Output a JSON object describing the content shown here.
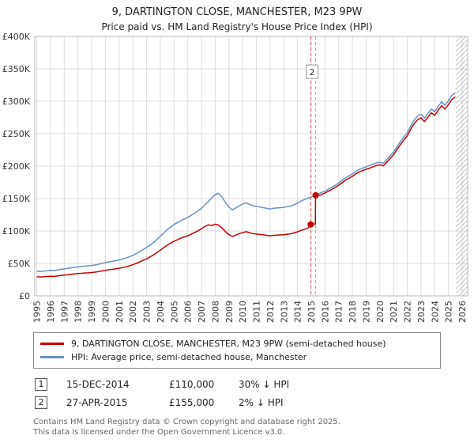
{
  "page": {
    "title": "9, DARTINGTON CLOSE, MANCHESTER, M23 9PW",
    "subtitle": "Price paid vs. HM Land Registry's House Price Index (HPI)",
    "footer_line1": "Contains HM Land Registry data © Crown copyright and database right 2025.",
    "footer_line2": "This data is licensed under the Open Government Licence v3.0."
  },
  "legend": {
    "items": [
      {
        "label": "9, DARTINGTON CLOSE, MANCHESTER, M23 9PW (semi-detached house)",
        "color": "#c40000"
      },
      {
        "label": "HPI: Average price, semi-detached house, Manchester",
        "color": "#6691c2"
      }
    ]
  },
  "transactions": [
    {
      "num": "1",
      "date": "15-DEC-2014",
      "price": "£110,000",
      "vs_hpi": "30% ↓ HPI"
    },
    {
      "num": "2",
      "date": "27-APR-2015",
      "price": "£155,000",
      "vs_hpi": "2% ↓ HPI"
    }
  ],
  "chart_data": {
    "type": "line",
    "title": "9, DARTINGTON CLOSE, MANCHESTER, M23 9PW",
    "subtitle": "Price paid vs. HM Land Registry's House Price Index (HPI)",
    "xlabel": "",
    "ylabel": "",
    "grid": true,
    "legend_position": "bottom",
    "xlim": [
      1994.85,
      2026.4
    ],
    "ylim": [
      0,
      400000
    ],
    "y_value_scale": 1000,
    "x_ticks": [
      1995,
      1996,
      1997,
      1998,
      1999,
      2000,
      2001,
      2002,
      2003,
      2004,
      2005,
      2006,
      2007,
      2008,
      2009,
      2010,
      2011,
      2012,
      2013,
      2014,
      2015,
      2016,
      2017,
      2018,
      2019,
      2020,
      2021,
      2022,
      2023,
      2024,
      2025,
      2026
    ],
    "y_ticks": [
      {
        "value": 0,
        "label": "£0"
      },
      {
        "value": 50000,
        "label": "£50K"
      },
      {
        "value": 100000,
        "label": "£100K"
      },
      {
        "value": 150000,
        "label": "£150K"
      },
      {
        "value": 200000,
        "label": "£200K"
      },
      {
        "value": 250000,
        "label": "£250K"
      },
      {
        "value": 300000,
        "label": "£300K"
      },
      {
        "value": 350000,
        "label": "£350K"
      },
      {
        "value": 400000,
        "label": "£400K"
      }
    ],
    "future_region_start": 2025.55,
    "sale_dot_color": "#c40000",
    "marker_line_colors": [
      "#d95555",
      "#ef8bb0"
    ],
    "sale_markers": [
      {
        "x": 2014.96,
        "y": 110000,
        "label": "1"
      },
      {
        "x": 2015.32,
        "y": 155000,
        "label": "2"
      }
    ],
    "annotation": {
      "x": 2015.32,
      "y": 345000,
      "label": "2"
    },
    "series": [
      {
        "id": "hpi-line",
        "name": "HPI: Average price, semi-detached house, Manchester",
        "color": "#6691c2",
        "points": [
          [
            1995,
            38
          ],
          [
            1995.25,
            37.5
          ],
          [
            1995.5,
            38.2
          ],
          [
            1995.75,
            38.8
          ],
          [
            1996,
            39.2
          ],
          [
            1996.25,
            39
          ],
          [
            1996.5,
            40
          ],
          [
            1996.75,
            40.8
          ],
          [
            1997,
            41.5
          ],
          [
            1997.25,
            42.3
          ],
          [
            1997.5,
            43.2
          ],
          [
            1997.75,
            44
          ],
          [
            1998,
            44.6
          ],
          [
            1998.25,
            45.2
          ],
          [
            1998.5,
            45.8
          ],
          [
            1998.75,
            46.2
          ],
          [
            1999,
            46.8
          ],
          [
            1999.25,
            47.6
          ],
          [
            1999.5,
            48.8
          ],
          [
            1999.75,
            50
          ],
          [
            2000,
            51.2
          ],
          [
            2000.25,
            52.3
          ],
          [
            2000.5,
            53.2
          ],
          [
            2000.75,
            54.2
          ],
          [
            2001,
            55.3
          ],
          [
            2001.25,
            56.8
          ],
          [
            2001.5,
            58.3
          ],
          [
            2001.75,
            60.2
          ],
          [
            2002,
            62.5
          ],
          [
            2002.25,
            65.2
          ],
          [
            2002.5,
            68.2
          ],
          [
            2002.75,
            71.3
          ],
          [
            2003,
            74.5
          ],
          [
            2003.25,
            78.2
          ],
          [
            2003.5,
            82.3
          ],
          [
            2003.75,
            87
          ],
          [
            2004,
            92
          ],
          [
            2004.25,
            97
          ],
          [
            2004.5,
            102
          ],
          [
            2004.75,
            106
          ],
          [
            2005,
            110
          ],
          [
            2005.25,
            113
          ],
          [
            2005.5,
            116
          ],
          [
            2005.75,
            118.5
          ],
          [
            2006,
            121
          ],
          [
            2006.25,
            124
          ],
          [
            2006.5,
            127.5
          ],
          [
            2006.75,
            131
          ],
          [
            2007,
            135
          ],
          [
            2007.25,
            140
          ],
          [
            2007.5,
            145.5
          ],
          [
            2007.75,
            151
          ],
          [
            2008,
            156
          ],
          [
            2008.25,
            158
          ],
          [
            2008.5,
            152
          ],
          [
            2008.75,
            144
          ],
          [
            2009,
            137
          ],
          [
            2009.25,
            132.5
          ],
          [
            2009.5,
            135.5
          ],
          [
            2009.75,
            139
          ],
          [
            2010,
            141.5
          ],
          [
            2010.25,
            143.5
          ],
          [
            2010.5,
            141
          ],
          [
            2010.75,
            139
          ],
          [
            2011,
            138
          ],
          [
            2011.25,
            137
          ],
          [
            2011.5,
            136
          ],
          [
            2011.75,
            135
          ],
          [
            2012,
            134
          ],
          [
            2012.25,
            135
          ],
          [
            2012.5,
            135.5
          ],
          [
            2012.75,
            136
          ],
          [
            2013,
            136.5
          ],
          [
            2013.25,
            137.5
          ],
          [
            2013.5,
            138.5
          ],
          [
            2013.75,
            140.5
          ],
          [
            2014,
            143
          ],
          [
            2014.25,
            146
          ],
          [
            2014.5,
            148.5
          ],
          [
            2014.75,
            150.5
          ],
          [
            2015,
            152.5
          ],
          [
            2015.25,
            155
          ],
          [
            2015.5,
            157
          ],
          [
            2015.75,
            159.5
          ],
          [
            2016,
            161.5
          ],
          [
            2016.25,
            164.5
          ],
          [
            2016.5,
            167.5
          ],
          [
            2016.75,
            170.5
          ],
          [
            2017,
            174
          ],
          [
            2017.25,
            178
          ],
          [
            2017.5,
            182
          ],
          [
            2017.75,
            185
          ],
          [
            2018,
            188
          ],
          [
            2018.25,
            192
          ],
          [
            2018.5,
            195
          ],
          [
            2018.75,
            197
          ],
          [
            2019,
            199
          ],
          [
            2019.25,
            201
          ],
          [
            2019.5,
            203
          ],
          [
            2019.75,
            205
          ],
          [
            2020,
            206
          ],
          [
            2020.25,
            204.5
          ],
          [
            2020.5,
            210
          ],
          [
            2020.75,
            216
          ],
          [
            2021,
            222
          ],
          [
            2021.25,
            230
          ],
          [
            2021.5,
            238
          ],
          [
            2021.75,
            245
          ],
          [
            2022,
            252
          ],
          [
            2022.25,
            262
          ],
          [
            2022.5,
            271
          ],
          [
            2022.75,
            277
          ],
          [
            2023,
            280
          ],
          [
            2023.25,
            274
          ],
          [
            2023.5,
            281
          ],
          [
            2023.75,
            288
          ],
          [
            2024,
            284
          ],
          [
            2024.25,
            292
          ],
          [
            2024.5,
            299
          ],
          [
            2024.75,
            294
          ],
          [
            2025,
            301
          ],
          [
            2025.25,
            309
          ],
          [
            2025.5,
            313
          ]
        ]
      },
      {
        "id": "property-price-line",
        "name": "9, DARTINGTON CLOSE, MANCHESTER, M23 9PW (semi-detached house)",
        "color": "#c40000",
        "points": [
          [
            1995,
            29.5
          ],
          [
            1995.25,
            29
          ],
          [
            1995.5,
            29.6
          ],
          [
            1995.75,
            30
          ],
          [
            1996,
            30.3
          ],
          [
            1996.25,
            30
          ],
          [
            1996.5,
            30.8
          ],
          [
            1996.75,
            31.4
          ],
          [
            1997,
            32
          ],
          [
            1997.25,
            32.6
          ],
          [
            1997.5,
            33.3
          ],
          [
            1997.75,
            34
          ],
          [
            1998,
            34.4
          ],
          [
            1998.25,
            34.8
          ],
          [
            1998.5,
            35.2
          ],
          [
            1998.75,
            35.5
          ],
          [
            1999,
            36
          ],
          [
            1999.25,
            36.6
          ],
          [
            1999.5,
            37.5
          ],
          [
            1999.75,
            38.4
          ],
          [
            2000,
            39.3
          ],
          [
            2000.25,
            40.2
          ],
          [
            2000.5,
            40.9
          ],
          [
            2000.75,
            41.7
          ],
          [
            2001,
            42.5
          ],
          [
            2001.25,
            43.6
          ],
          [
            2001.5,
            44.8
          ],
          [
            2001.75,
            46.2
          ],
          [
            2002,
            48
          ],
          [
            2002.25,
            50
          ],
          [
            2002.5,
            52.3
          ],
          [
            2002.75,
            54.7
          ],
          [
            2003,
            57.1
          ],
          [
            2003.25,
            60
          ],
          [
            2003.5,
            63.1
          ],
          [
            2003.75,
            66.7
          ],
          [
            2004,
            70.5
          ],
          [
            2004.25,
            74.4
          ],
          [
            2004.5,
            78.2
          ],
          [
            2004.75,
            81.3
          ],
          [
            2005,
            84.3
          ],
          [
            2005.25,
            86.6
          ],
          [
            2005.5,
            88.9
          ],
          [
            2005.75,
            90.8
          ],
          [
            2006,
            92.7
          ],
          [
            2006.25,
            95
          ],
          [
            2006.5,
            97.7
          ],
          [
            2006.75,
            100.4
          ],
          [
            2007,
            103.4
          ],
          [
            2007.25,
            107
          ],
          [
            2007.5,
            109.5
          ],
          [
            2007.75,
            108.5
          ],
          [
            2008,
            110.5
          ],
          [
            2008.25,
            109
          ],
          [
            2008.5,
            104.5
          ],
          [
            2008.75,
            99
          ],
          [
            2009,
            94.5
          ],
          [
            2009.25,
            91.5
          ],
          [
            2009.5,
            93.5
          ],
          [
            2009.75,
            96
          ],
          [
            2010,
            97.5
          ],
          [
            2010.25,
            99
          ],
          [
            2010.5,
            97.5
          ],
          [
            2010.75,
            96
          ],
          [
            2011,
            95.3
          ],
          [
            2011.25,
            94.6
          ],
          [
            2011.5,
            94
          ],
          [
            2011.75,
            93.3
          ],
          [
            2012,
            92.6
          ],
          [
            2012.25,
            93.3
          ],
          [
            2012.5,
            93.6
          ],
          [
            2012.75,
            94
          ],
          [
            2013,
            94.3
          ],
          [
            2013.25,
            95
          ],
          [
            2013.5,
            95.7
          ],
          [
            2013.75,
            97.1
          ],
          [
            2014,
            98.8
          ],
          [
            2014.25,
            100.9
          ],
          [
            2014.5,
            102.6
          ],
          [
            2014.75,
            104
          ],
          [
            2014.96,
            110
          ],
          [
            2015.1,
            110.5
          ],
          [
            2015.3,
            111
          ],
          [
            2015.32,
            155
          ],
          [
            2015.5,
            154
          ],
          [
            2015.75,
            156.5
          ],
          [
            2016,
            158.5
          ],
          [
            2016.25,
            161.3
          ],
          [
            2016.5,
            164.2
          ],
          [
            2016.75,
            167.2
          ],
          [
            2017,
            170.6
          ],
          [
            2017.25,
            174.5
          ],
          [
            2017.5,
            178.4
          ],
          [
            2017.75,
            181.4
          ],
          [
            2018,
            184.3
          ],
          [
            2018.25,
            188.2
          ],
          [
            2018.5,
            191.2
          ],
          [
            2018.75,
            193.2
          ],
          [
            2019,
            195.1
          ],
          [
            2019.25,
            197
          ],
          [
            2019.5,
            199
          ],
          [
            2019.75,
            201
          ],
          [
            2020,
            202
          ],
          [
            2020.25,
            200.5
          ],
          [
            2020.5,
            205.9
          ],
          [
            2020.75,
            211.8
          ],
          [
            2021,
            217.6
          ],
          [
            2021.25,
            225.5
          ],
          [
            2021.5,
            233.3
          ],
          [
            2021.75,
            240.2
          ],
          [
            2022,
            247
          ],
          [
            2022.25,
            256.8
          ],
          [
            2022.5,
            265.6
          ],
          [
            2022.75,
            271.5
          ],
          [
            2023,
            274.5
          ],
          [
            2023.25,
            268.5
          ],
          [
            2023.5,
            275.4
          ],
          [
            2023.75,
            282.3
          ],
          [
            2024,
            278.3
          ],
          [
            2024.25,
            286.2
          ],
          [
            2024.5,
            293.1
          ],
          [
            2024.75,
            288.1
          ],
          [
            2025,
            295
          ],
          [
            2025.25,
            302.8
          ],
          [
            2025.5,
            306.8
          ]
        ]
      }
    ]
  }
}
